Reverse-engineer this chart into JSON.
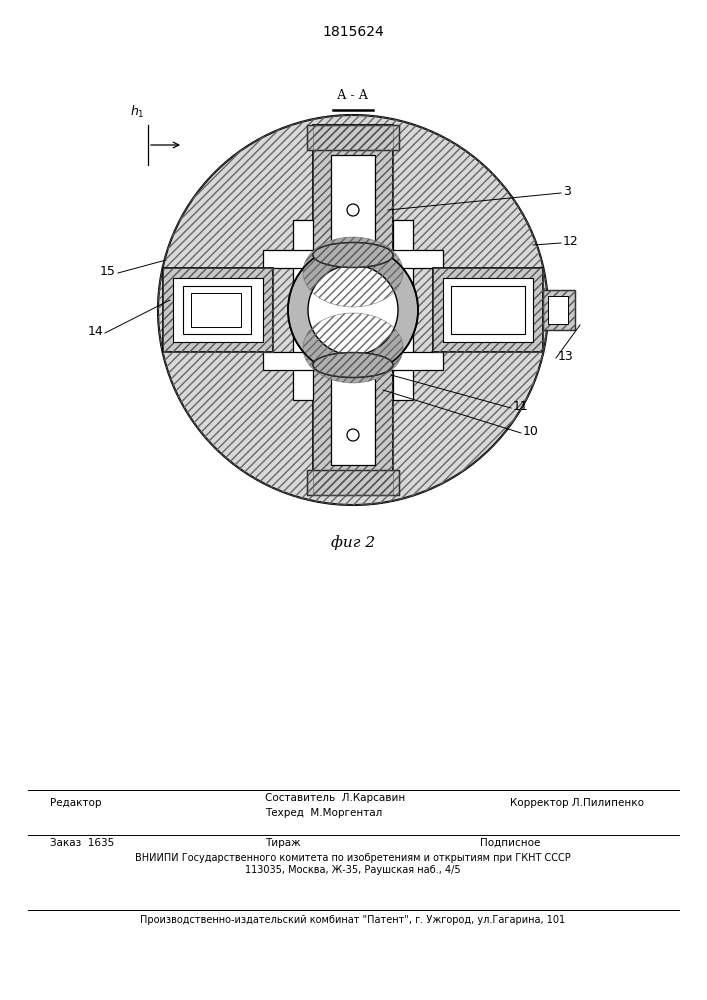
{
  "patent_number": "1815624",
  "figure_label": "фиг 2",
  "bg_color": "#ffffff",
  "footer_editor": "Редактор",
  "footer_line1": "Составитель  Л.Карсавин",
  "footer_line2": "Техред  М.Моргентал",
  "footer_corrector": "Корректор Л.Пилипенко",
  "footer_order": "Заказ  1635",
  "footer_tirazh": "Тираж",
  "footer_podpisnoe": "Подписное",
  "footer_vniiipi": "ВНИИПИ Государственного комитета по изобретениям и открытиям при ГКНТ СССР",
  "footer_address": "113035, Москва, Ж-35, Раушская наб., 4/5",
  "footer_factory": "Производственно-издательский комбинат \"Патент\", г. Ужгород, ул.Гагарина, 101"
}
